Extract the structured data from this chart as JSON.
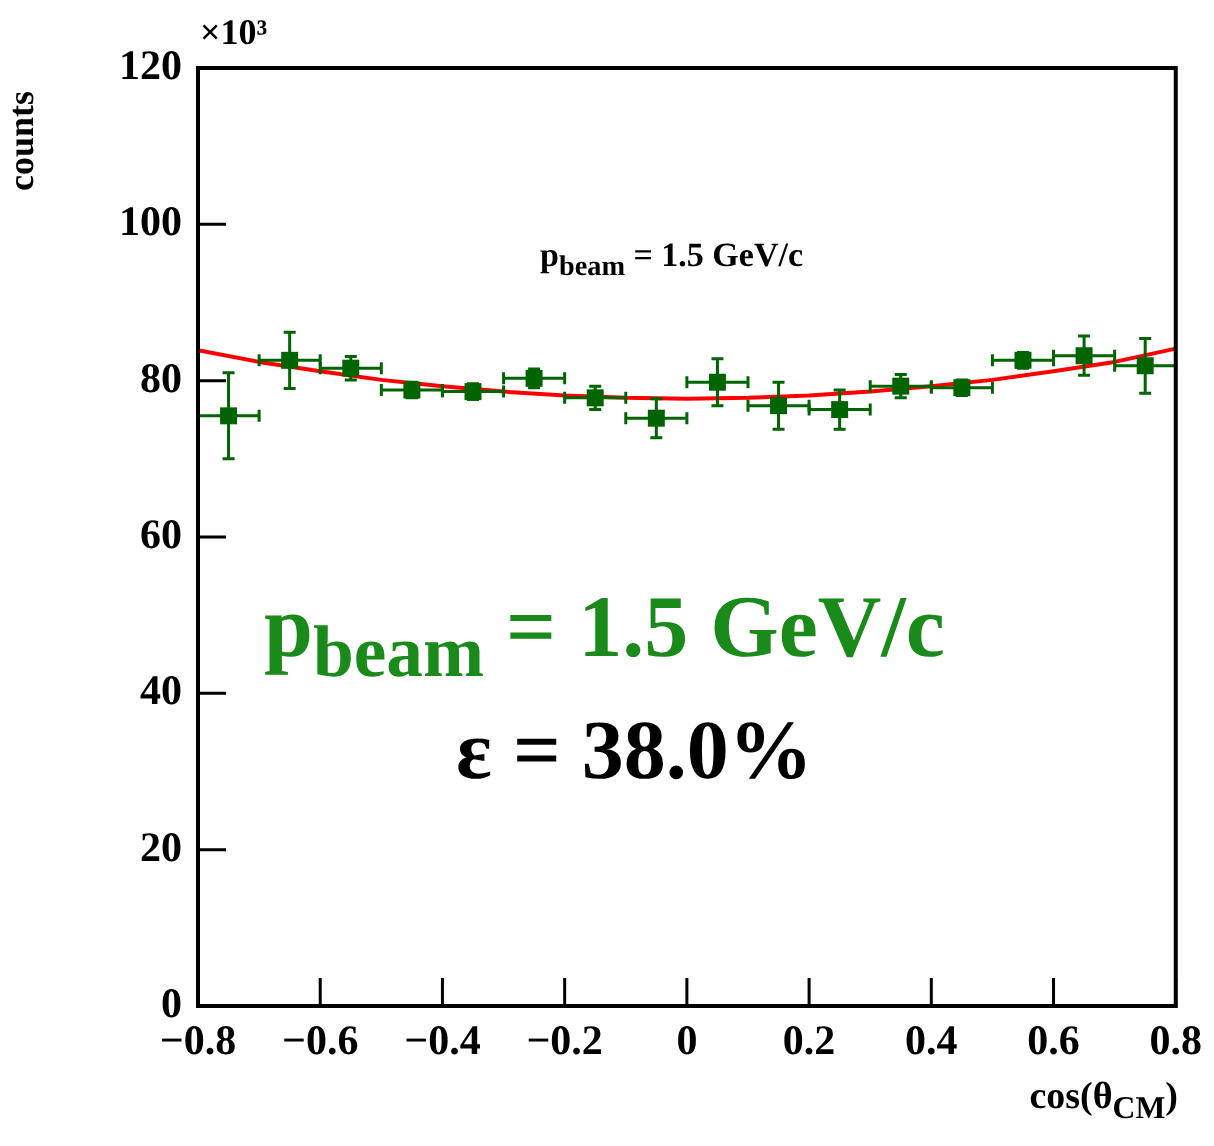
{
  "chart_data": {
    "type": "scatter",
    "xlabel": "cos(θ$_{CM}$)",
    "ylabel": "counts",
    "annotations": [
      "×10³",
      "p$_{beam}$ = 1.5 GeV/c",
      "p$_{beam}$ = 1.5 GeV/c",
      "ε = 38.0%"
    ],
    "xlim": [
      -0.8,
      0.8
    ],
    "xticks": [
      {
        "value": -0.8,
        "label": "−0.8"
      },
      {
        "value": -0.6,
        "label": "−0.6"
      },
      {
        "value": -0.4,
        "label": "−0.4"
      },
      {
        "value": -0.2,
        "label": "−0.2"
      },
      0,
      0.2,
      0.4,
      0.6,
      0.8
    ],
    "ylim": [
      0,
      120
    ],
    "yticks": [
      0,
      20,
      40,
      60,
      80,
      100,
      120
    ],
    "grid": false,
    "legend": false,
    "marker": "square",
    "series": [
      {
        "color": "#006400",
        "x": [
          -0.75,
          -0.65,
          -0.55,
          -0.45,
          -0.35,
          -0.25,
          -0.15,
          -0.05,
          0.05,
          0.15,
          0.25,
          0.35,
          0.45,
          0.55,
          0.65,
          0.75
        ],
        "values": [
          75.5,
          82.6,
          81.6,
          78.8,
          78.6,
          80.3,
          77.8,
          75.2,
          79.8,
          76.8,
          76.3,
          79.3,
          79.1,
          82.6,
          83.2,
          81.9
        ],
        "errors": [
          5.5,
          3.6,
          1.5,
          1,
          1,
          1.2,
          1.5,
          2.5,
          3,
          3,
          2.5,
          1.5,
          1,
          1,
          2.5,
          3.5
        ],
        "xerrors": [
          0.05,
          0.05,
          0.05,
          0.05,
          0.05,
          0.05,
          0.05,
          0.05,
          0.05,
          0.05,
          0.05,
          0.05,
          0.05,
          0.05,
          0.05,
          0.05
        ]
      },
      {
        "type": "line",
        "color": "#ff0000",
        "marker": "none",
        "x": [
          -0.8,
          -0.7,
          -0.6,
          -0.5,
          -0.4,
          -0.3,
          -0.2,
          -0.1,
          0,
          0.1,
          0.2,
          0.3,
          0.4,
          0.5,
          0.6,
          0.7,
          0.8
        ],
        "values": [
          83.9,
          82.4,
          81.2,
          80.1,
          79.3,
          78.6,
          78.1,
          77.8,
          77.7,
          77.8,
          78.1,
          78.6,
          79.3,
          80.1,
          81.2,
          82.4,
          84.1
        ]
      }
    ]
  }
}
